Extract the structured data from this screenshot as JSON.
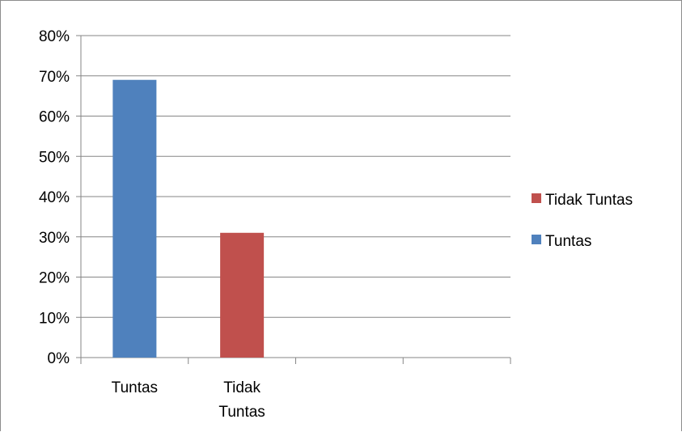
{
  "chart_data": {
    "type": "bar",
    "categories": [
      "Tuntas",
      "Tidak Tuntas",
      "",
      ""
    ],
    "category_lines": [
      [
        "Tuntas"
      ],
      [
        "Tidak",
        "Tuntas"
      ],
      [],
      []
    ],
    "series": [
      {
        "name": "Tuntas",
        "color": "#4f81bd",
        "values": [
          69,
          null,
          null,
          null
        ]
      },
      {
        "name": "Tidak Tuntas",
        "color": "#c0504d",
        "values": [
          null,
          31,
          null,
          null
        ]
      }
    ],
    "ylim": [
      0,
      80
    ],
    "ytick_step": 10,
    "ytick_labels": [
      "0%",
      "10%",
      "20%",
      "30%",
      "40%",
      "50%",
      "60%",
      "70%",
      "80%"
    ],
    "grid": true,
    "legend": {
      "position": "right",
      "entries": [
        {
          "label": "Tidak Tuntas",
          "color": "#c0504d"
        },
        {
          "label": "Tuntas",
          "color": "#4f81bd"
        }
      ]
    }
  }
}
